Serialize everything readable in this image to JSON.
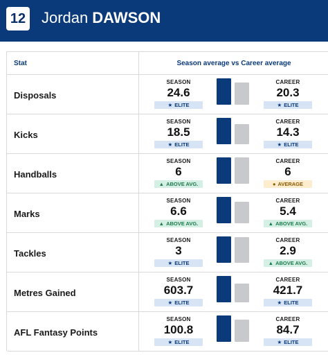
{
  "header": {
    "number": "12",
    "first_name": "Jordan",
    "last_name": "DAWSON"
  },
  "table": {
    "col_stat": "Stat",
    "col_compare": "Season average vs Career average",
    "season_label": "SEASON",
    "career_label": "CAREER"
  },
  "rows": [
    {
      "stat": "Disposals",
      "season": "24.6",
      "season_badge": "ELITE",
      "season_badge_type": "elite",
      "career": "20.3",
      "career_badge": "ELITE",
      "career_badge_type": "elite",
      "season_fill": 1.0,
      "career_fill": 0.83
    },
    {
      "stat": "Kicks",
      "season": "18.5",
      "season_badge": "ELITE",
      "season_badge_type": "elite",
      "career": "14.3",
      "career_badge": "ELITE",
      "career_badge_type": "elite",
      "season_fill": 1.0,
      "career_fill": 0.77
    },
    {
      "stat": "Handballs",
      "season": "6",
      "season_badge": "ABOVE AVG.",
      "season_badge_type": "above",
      "career": "6",
      "career_badge": "AVERAGE",
      "career_badge_type": "average",
      "season_fill": 1.0,
      "career_fill": 1.0
    },
    {
      "stat": "Marks",
      "season": "6.6",
      "season_badge": "ABOVE AVG.",
      "season_badge_type": "above",
      "career": "5.4",
      "career_badge": "ABOVE AVG.",
      "career_badge_type": "above",
      "season_fill": 1.0,
      "career_fill": 0.82
    },
    {
      "stat": "Tackles",
      "season": "3",
      "season_badge": "ELITE",
      "season_badge_type": "elite",
      "career": "2.9",
      "career_badge": "ABOVE AVG.",
      "career_badge_type": "above",
      "season_fill": 1.0,
      "career_fill": 0.97
    },
    {
      "stat": "Metres Gained",
      "season": "603.7",
      "season_badge": "ELITE",
      "season_badge_type": "elite",
      "career": "421.7",
      "career_badge": "ELITE",
      "career_badge_type": "elite",
      "season_fill": 1.0,
      "career_fill": 0.7
    },
    {
      "stat": "AFL Fantasy Points",
      "season": "100.8",
      "season_badge": "ELITE",
      "season_badge_type": "elite",
      "career": "84.7",
      "career_badge": "ELITE",
      "career_badge_type": "elite",
      "season_fill": 1.0,
      "career_fill": 0.84
    }
  ],
  "icons": {
    "elite": "star-icon",
    "above": "triangle-up-icon",
    "average": "dot-icon"
  }
}
